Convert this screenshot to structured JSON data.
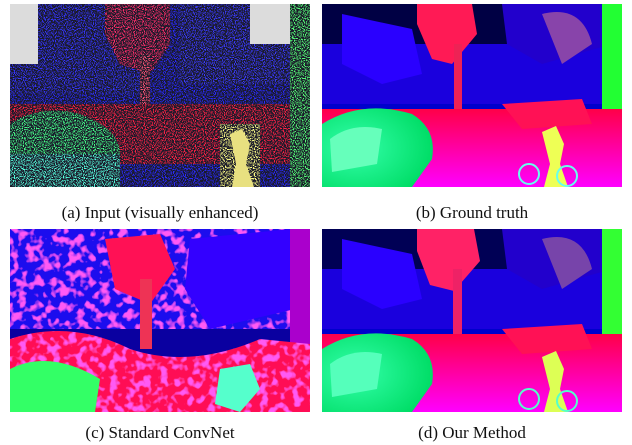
{
  "figure": {
    "panels": [
      {
        "id": "a",
        "caption": "(a) Input (visually enhanced)"
      },
      {
        "id": "b",
        "caption": "(b) Ground truth"
      },
      {
        "id": "c",
        "caption": "(c) Standard ConvNet"
      },
      {
        "id": "d",
        "caption": "(d) Our Method"
      }
    ]
  }
}
